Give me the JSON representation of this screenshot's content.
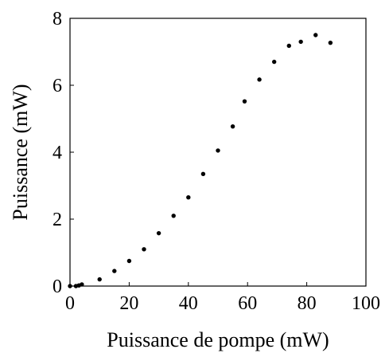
{
  "chart_data": {
    "type": "scatter",
    "title": "",
    "xlabel": "Puissance de pompe (mW)",
    "ylabel": "Puissance (mW)",
    "xlim": [
      0,
      100
    ],
    "ylim": [
      0,
      8
    ],
    "xticks": [
      0,
      20,
      40,
      60,
      80,
      100
    ],
    "yticks": [
      0,
      2,
      4,
      6,
      8
    ],
    "grid": false,
    "legend": "none",
    "marker_color": "#000000",
    "series": [
      {
        "x": [
          0,
          2,
          3,
          4,
          10,
          15,
          20,
          25,
          30,
          35,
          40,
          45,
          50,
          55,
          59,
          64,
          69,
          74,
          78,
          83,
          88
        ],
        "y": [
          0,
          0,
          0.02,
          0.05,
          0.2,
          0.45,
          0.75,
          1.1,
          1.58,
          2.1,
          2.65,
          3.35,
          4.05,
          4.77,
          5.52,
          6.17,
          6.7,
          7.18,
          7.3,
          7.5,
          7.27
        ]
      }
    ]
  }
}
